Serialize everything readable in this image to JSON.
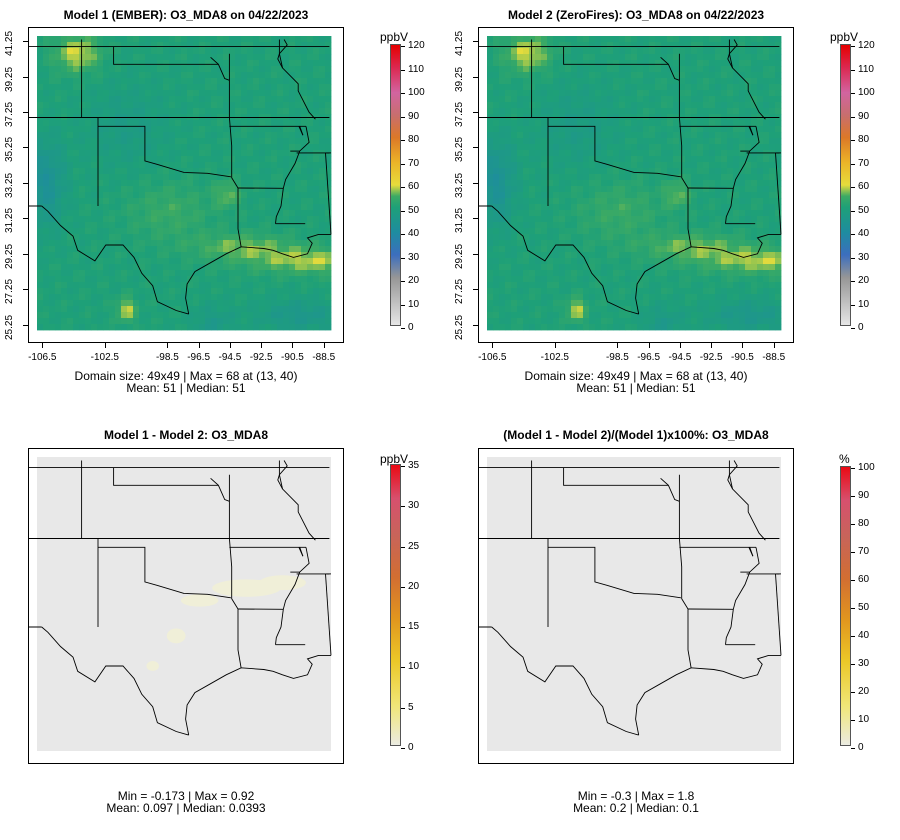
{
  "colors": {
    "state_border": "#000000",
    "diff_fill": "#e8e8e8",
    "diff_tint": "#f0efd8"
  },
  "chart_data": [
    {
      "type": "heatmap",
      "title": "Model 1 (EMBER): O3_MDA8 on 04/22/2023",
      "legend_title": "ppbV",
      "legend_ticks": [
        "120",
        "110",
        "100",
        "90",
        "80",
        "70",
        "60",
        "50",
        "40",
        "30",
        "20",
        "10",
        "0"
      ],
      "value_range": [
        0,
        120
      ],
      "xticks": [
        "-106.5",
        "-102.5",
        "-98.5",
        "-96.5",
        "-94.5",
        "-92.5",
        "-90.5",
        "-88.5"
      ],
      "yticks": [
        "41.25",
        "39.25",
        "37.25",
        "35.25",
        "33.25",
        "31.25",
        "29.25",
        "27.25",
        "25.25"
      ],
      "stats_line1": "Domain size: 49x49 | Max = 68 at (13, 40)",
      "stats_line2": "Mean: 51 |  Median: 51",
      "fill": "model"
    },
    {
      "type": "heatmap",
      "title": "Model 2 (ZeroFires): O3_MDA8 on 04/22/2023",
      "legend_title": "ppbV",
      "legend_ticks": [
        "120",
        "110",
        "100",
        "90",
        "80",
        "70",
        "60",
        "50",
        "40",
        "30",
        "20",
        "10",
        "0"
      ],
      "value_range": [
        0,
        120
      ],
      "xticks": [
        "-106.5",
        "-102.5",
        "-98.5",
        "-96.5",
        "-94.5",
        "-92.5",
        "-90.5",
        "-88.5"
      ],
      "yticks": [
        "41.25",
        "39.25",
        "37.25",
        "35.25",
        "33.25",
        "31.25",
        "29.25",
        "27.25",
        "25.25"
      ],
      "stats_line1": "Domain size: 49x49 | Max = 68 at (13, 40)",
      "stats_line2": "Mean: 51 |  Median: 51",
      "fill": "model"
    },
    {
      "type": "heatmap",
      "title": "Model 1 - Model 2: O3_MDA8",
      "legend_title": "ppbV",
      "legend_ticks": [
        "35",
        "30",
        "25",
        "20",
        "15",
        "10",
        "5",
        "0"
      ],
      "value_range": [
        0,
        35
      ],
      "xticks": [],
      "yticks": [],
      "stats_line1": "Min = -0.173 | Max = 0.92",
      "stats_line2": "Mean: 0.097 |  Median: 0.0393",
      "fill": "diff"
    },
    {
      "type": "heatmap",
      "title": "(Model 1 - Model 2)/(Model 1)x100%: O3_MDA8",
      "legend_title": "%",
      "legend_ticks": [
        "100",
        "90",
        "80",
        "70",
        "60",
        "50",
        "40",
        "30",
        "20",
        "10",
        "0"
      ],
      "value_range": [
        0,
        100
      ],
      "xticks": [],
      "yticks": [],
      "stats_line1": "Min = -0.3 | Max = 1.8",
      "stats_line2": "Mean: 0.2 |  Median: 0.1",
      "fill": "pct"
    }
  ]
}
